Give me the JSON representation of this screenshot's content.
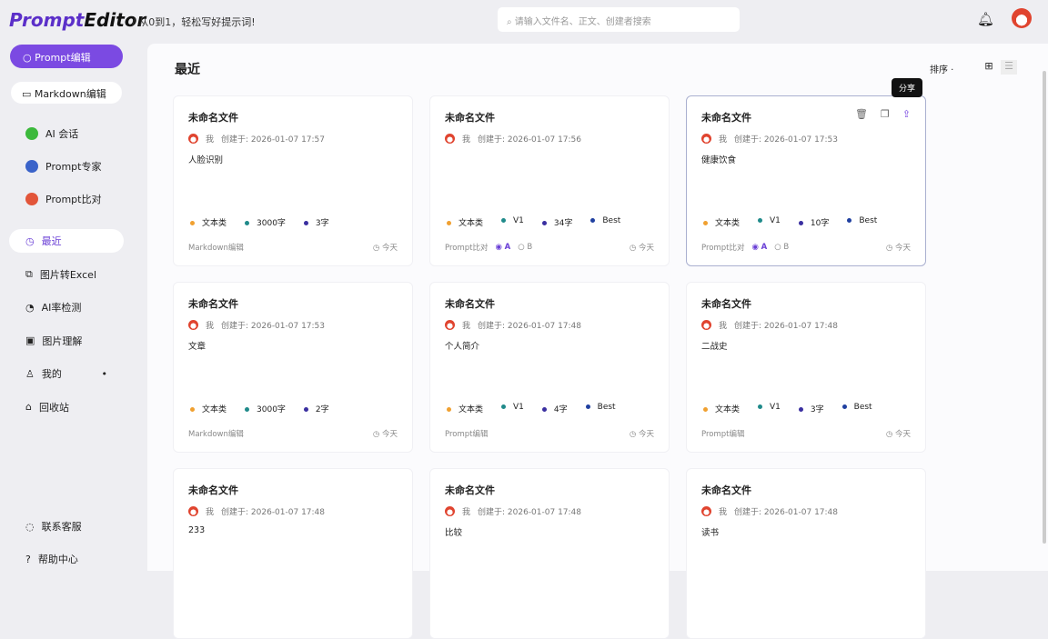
{
  "header": {
    "logo_a": "Prompt",
    "logo_b": "Editor",
    "slogan": "/ 从0到1，轻松写好提示词!",
    "search_placeholder": "请输入文件名、正文、创建者搜索"
  },
  "sidebar": {
    "primary": "Prompt编辑",
    "secondary": "Markdown编辑",
    "tools": [
      {
        "label": "AI 会话",
        "color": "#3cb93c"
      },
      {
        "label": "Prompt专家",
        "color": "#3a63c9"
      },
      {
        "label": "Prompt比对",
        "color": "#e2553a"
      }
    ],
    "items": [
      {
        "label": "最近",
        "icon": "◷"
      },
      {
        "label": "图片转Excel",
        "icon": "⧉"
      },
      {
        "label": "AI率检测",
        "icon": "◔"
      },
      {
        "label": "图片理解",
        "icon": "▣"
      },
      {
        "label": "我的",
        "icon": "♙"
      },
      {
        "label": "回收站",
        "icon": "⌂"
      }
    ],
    "bottom": [
      {
        "label": "联系客服",
        "icon": "◌"
      },
      {
        "label": "帮助中心",
        "icon": "?"
      }
    ]
  },
  "main": {
    "title": "最近",
    "sort": "排序 ·",
    "tooltip": "分享"
  },
  "cards": [
    {
      "title": "未命名文件",
      "author": "我",
      "created": "创建于: 2026-01-07 17:57",
      "content": "人脸识别",
      "tags": [
        "文本类",
        "3000字",
        "3字"
      ],
      "type": "Markdown编辑",
      "date": "今天"
    },
    {
      "title": "未命名文件",
      "author": "我",
      "created": "创建于: 2026-01-07 17:56",
      "content": "",
      "tags": [
        "文本类",
        "V1",
        "34字",
        "Best"
      ],
      "type": "Prompt比对",
      "ab": [
        "A",
        "B"
      ],
      "date": "今天"
    },
    {
      "title": "未命名文件",
      "author": "我",
      "created": "创建于: 2026-01-07 17:53",
      "content": "健康饮食",
      "tags": [
        "文本类",
        "V1",
        "10字",
        "Best"
      ],
      "type": "Prompt比对",
      "ab": [
        "A",
        "B"
      ],
      "date": "今天"
    },
    {
      "title": "未命名文件",
      "author": "我",
      "created": "创建于: 2026-01-07 17:53",
      "content": "文章",
      "tags": [
        "文本类",
        "3000字",
        "2字"
      ],
      "type": "Markdown编辑",
      "date": "今天"
    },
    {
      "title": "未命名文件",
      "author": "我",
      "created": "创建于: 2026-01-07 17:48",
      "content": "个人简介",
      "tags": [
        "文本类",
        "V1",
        "4字",
        "Best"
      ],
      "type": "Prompt编辑",
      "date": "今天"
    },
    {
      "title": "未命名文件",
      "author": "我",
      "created": "创建于: 2026-01-07 17:48",
      "content": "二战史",
      "tags": [
        "文本类",
        "V1",
        "3字",
        "Best"
      ],
      "type": "Prompt编辑",
      "date": "今天"
    },
    {
      "title": "未命名文件",
      "author": "我",
      "created": "创建于: 2026-01-07 17:48",
      "content": "233",
      "tags": [],
      "type": "",
      "date": ""
    },
    {
      "title": "未命名文件",
      "author": "我",
      "created": "创建于: 2026-01-07 17:48",
      "content": "比较",
      "tags": [],
      "type": "",
      "date": ""
    },
    {
      "title": "未命名文件",
      "author": "我",
      "created": "创建于: 2026-01-07 17:48",
      "content": "读书",
      "tags": [],
      "type": "",
      "date": ""
    }
  ],
  "tag_colors": [
    "#f0a030",
    "#1f8a8a",
    "#3a2fa0",
    "#2040a0"
  ],
  "accent": "#7b4ae2"
}
